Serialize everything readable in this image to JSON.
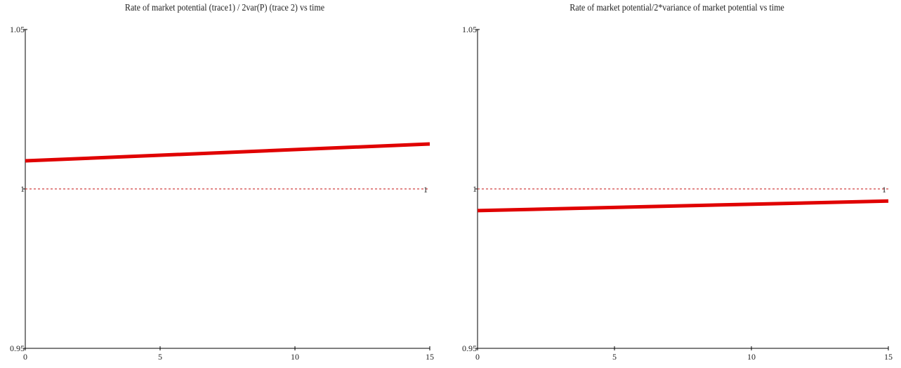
{
  "chart_data": [
    {
      "type": "line",
      "title": "Rate of market potential (trace1) / 2var(P) (trace 2) vs time",
      "xlim": [
        0,
        15
      ],
      "ylim": [
        0.95,
        1.05
      ],
      "x_ticks": [
        0,
        5,
        10,
        15
      ],
      "y_ticks": [
        "0.95",
        "1",
        "1.05"
      ],
      "grid": false,
      "series": [
        {
          "x": [
            0,
            15
          ],
          "y": [
            1.0088,
            1.0141
          ],
          "color": "#e00000",
          "style": "solid"
        },
        {
          "x": [
            0,
            15
          ],
          "y": [
            1.0,
            1.0
          ],
          "color": "#d04040",
          "style": "dashed",
          "end_label": "1"
        }
      ]
    },
    {
      "type": "line",
      "title": "Rate of market potential/2*variance of market potential vs time",
      "xlim": [
        0,
        15
      ],
      "ylim": [
        0.95,
        1.05
      ],
      "x_ticks": [
        0,
        5,
        10,
        15
      ],
      "y_ticks": [
        "0.95",
        "1",
        "1.05"
      ],
      "grid": false,
      "series": [
        {
          "x": [
            0,
            15
          ],
          "y": [
            0.9932,
            0.9962
          ],
          "color": "#e00000",
          "style": "solid"
        },
        {
          "x": [
            0,
            15
          ],
          "y": [
            1.0,
            1.0
          ],
          "color": "#d04040",
          "style": "dashed",
          "end_label": "1"
        }
      ]
    }
  ]
}
